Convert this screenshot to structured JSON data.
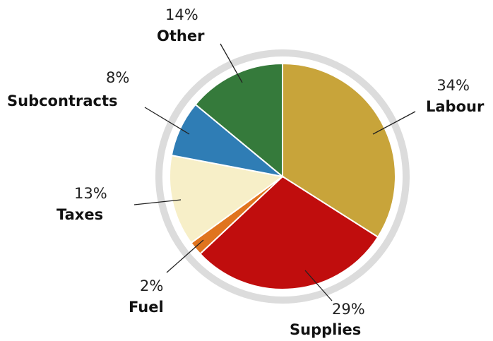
{
  "chart_data": {
    "type": "pie",
    "title": "",
    "slices": [
      {
        "label": "Labour",
        "percent_label": "34%",
        "value": 34,
        "color": "#c8a43a"
      },
      {
        "label": "Supplies",
        "percent_label": "29%",
        "value": 29,
        "color": "#c00d0d"
      },
      {
        "label": "Fuel",
        "percent_label": "2%",
        "value": 2,
        "color": "#e0741e"
      },
      {
        "label": "Taxes",
        "percent_label": "13%",
        "value": 13,
        "color": "#f7efc8"
      },
      {
        "label": "Subcontracts",
        "percent_label": "8%",
        "value": 8,
        "color": "#2f7db5"
      },
      {
        "label": "Other",
        "percent_label": "14%",
        "value": 14,
        "color": "#357a3b"
      }
    ],
    "ring_color": "#dcdcdc",
    "legend": "none"
  }
}
